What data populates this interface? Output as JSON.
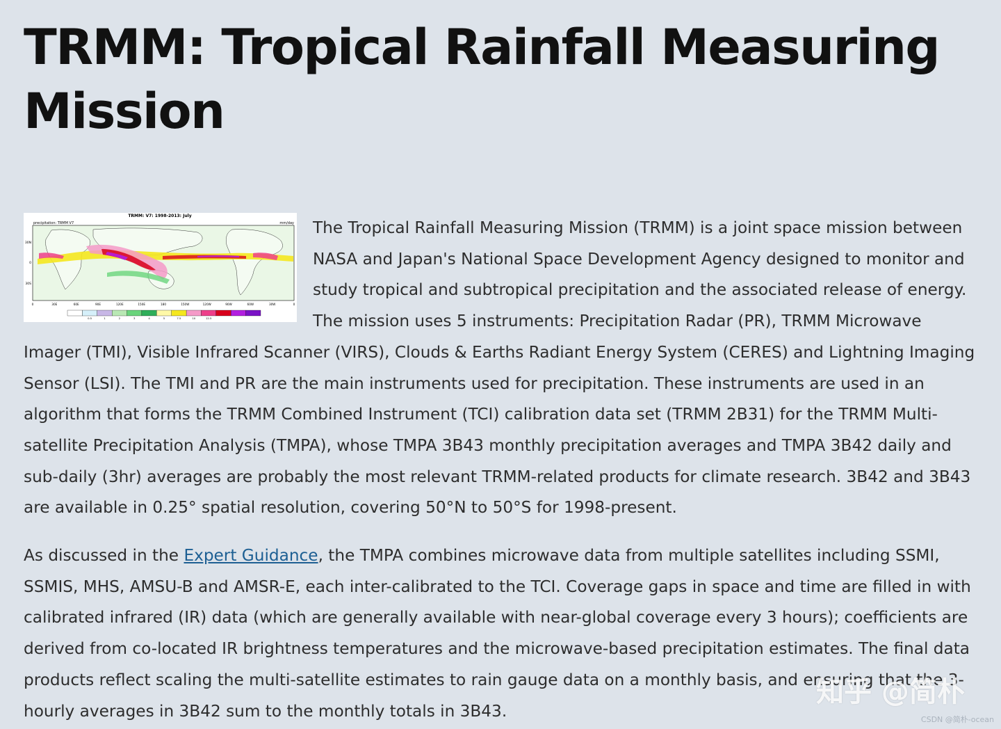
{
  "title": "TRMM: Tropical Rainfall Measuring Mission",
  "figure": {
    "title": "TRMM: V7: 1998-2013: July",
    "left_label": "precipitation: TRMM V7",
    "units": "mm/day",
    "lat_labels": [
      "30N",
      "0",
      "30S"
    ],
    "lon_labels": [
      "0",
      "30E",
      "60E",
      "90E",
      "120E",
      "150E",
      "180",
      "150W",
      "120W",
      "90W",
      "60W",
      "30W",
      "0"
    ],
    "colorbar_labels": [
      "0.5",
      "1",
      "2",
      "3",
      "4",
      "5",
      "7.5",
      "10",
      "12.5"
    ],
    "colorbar_colors": [
      "#ffffff",
      "#d6f0fa",
      "#c8b7e6",
      "#b9e8b4",
      "#6ad47c",
      "#2fae5a",
      "#fff9a8",
      "#f5e71e",
      "#f59ac8",
      "#ee3f8a",
      "#d8001c",
      "#b21fe0",
      "#7a12c6"
    ]
  },
  "paragraphs": {
    "p1": "The Tropical Rainfall Measuring Mission (TRMM) is a joint space mission between NASA and Japan's National Space Development Agency designed to monitor and study tropical and subtropical precipitation and the associated release of energy. The mission uses 5 instruments: Precipitation Radar (PR), TRMM Microwave Imager (TMI), Visible Infrared Scanner (VIRS), Clouds & Earths Radiant Energy System (CERES) and Lightning Imaging Sensor (LSI).  The TMI and PR are the main instruments used for precipitation.  These instruments are used in an algorithm that forms the TRMM Combined Instrument (TCI) calibration data set (TRMM 2B31) for the TRMM Multi-satellite Precipitation Analysis (TMPA), whose TMPA 3B43 monthly precipitation averages and TMPA 3B42 daily and sub-daily (3hr) averages are probably the most relevant TRMM-related products for climate research. 3B42 and 3B43 are available in 0.25° spatial resolution, covering 50°N to 50°S for 1998-present.",
    "p2_before": "As discussed in the ",
    "p2_link": "Expert Guidance",
    "p2_after": ", the TMPA combines microwave data from multiple satellites including SSMI, SSMIS, MHS, AMSU-B and AMSR-E, each inter-calibrated to the TCI.   Coverage gaps in space and time are filled in with calibrated infrared (IR) data (which are generally available with near-global coverage every 3 hours); coefficients are derived from co-located IR brightness temperatures and the microwave-based precipitation estimates. The final data products reflect scaling the multi-satellite estimates to rain gauge data on a monthly basis, and ensuring that the 3-hourly averages in 3B42 sum to the monthly totals in 3B43."
  },
  "watermark": "知乎 @简朴",
  "credit": "CSDN @简朴-ocean"
}
